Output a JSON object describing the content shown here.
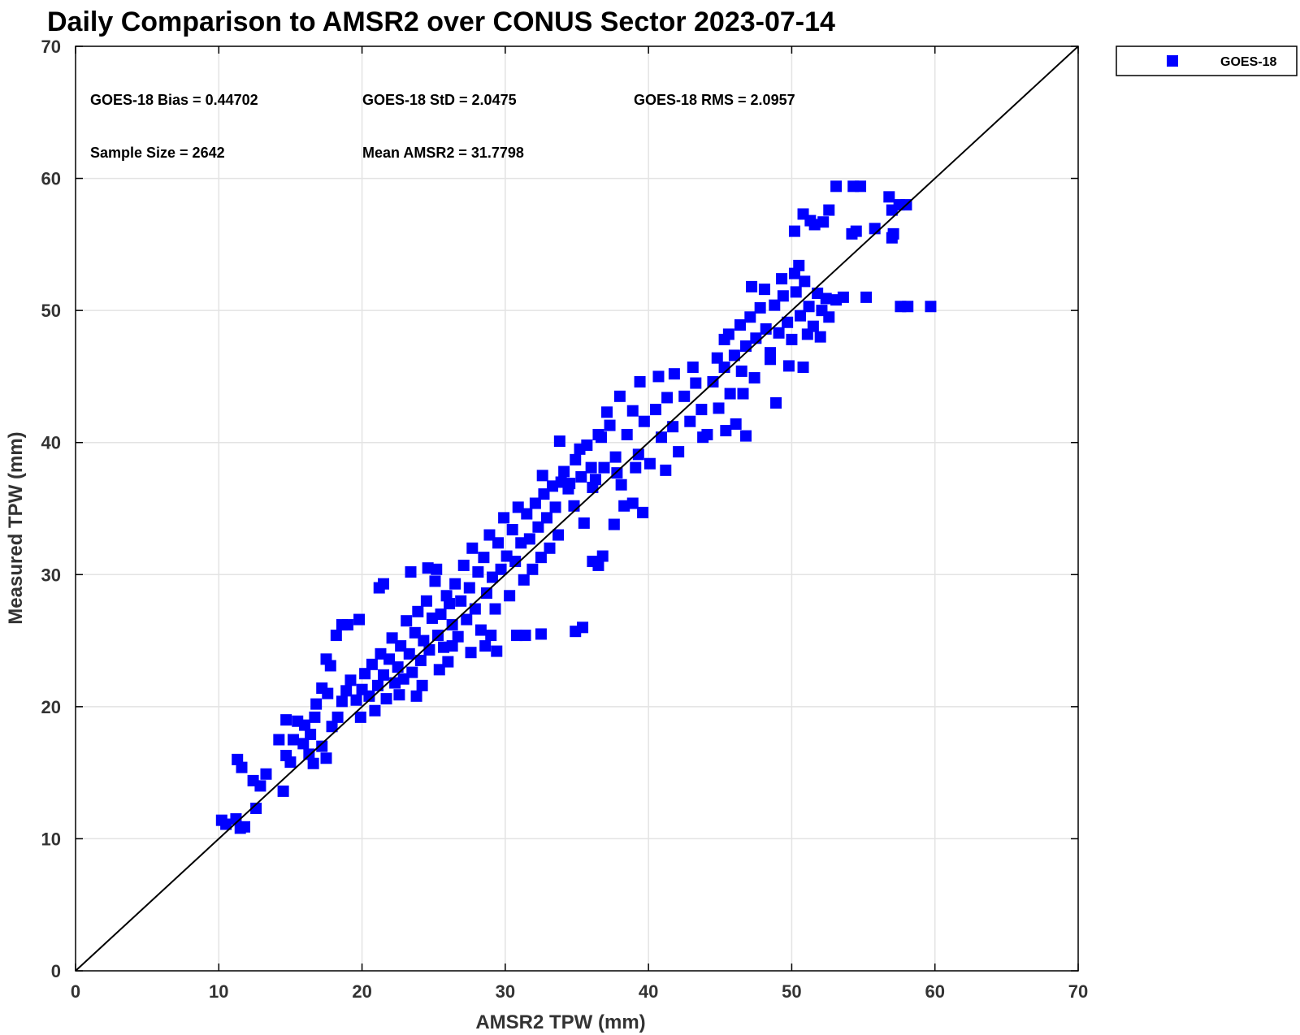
{
  "chart_data": {
    "type": "scatter",
    "title": "Daily Comparison to AMSR2 over CONUS Sector 2023-07-14",
    "xlabel": "AMSR2 TPW (mm)",
    "ylabel": "Measured TPW (mm)",
    "xlim": [
      0,
      70
    ],
    "ylim": [
      0,
      70
    ],
    "xticks": [
      0,
      10,
      20,
      30,
      40,
      50,
      60,
      70
    ],
    "yticks": [
      0,
      10,
      20,
      30,
      40,
      50,
      60,
      70
    ],
    "grid": true,
    "legend": {
      "position": "outside-top-right",
      "entries": [
        "GOES-18"
      ]
    },
    "reference_line": {
      "type": "1:1",
      "from": [
        0,
        0
      ],
      "to": [
        70,
        70
      ],
      "color": "#000000"
    },
    "annotations": [
      "GOES-18 Bias = 0.44702",
      "GOES-18 StD = 2.0475",
      "GOES-18 RMS = 2.0957",
      "Sample Size = 2642",
      "Mean AMSR2 = 31.7798"
    ],
    "series": [
      {
        "name": "GOES-18",
        "marker": "square",
        "color": "#0000ff",
        "points": [
          [
            10.2,
            11.4
          ],
          [
            10.5,
            11.1
          ],
          [
            11.2,
            11.5
          ],
          [
            11.5,
            10.8
          ],
          [
            11.8,
            10.9
          ],
          [
            11.3,
            16.0
          ],
          [
            11.6,
            15.4
          ],
          [
            12.4,
            14.4
          ],
          [
            12.6,
            12.3
          ],
          [
            12.9,
            14.0
          ],
          [
            13.3,
            14.9
          ],
          [
            14.5,
            13.6
          ],
          [
            14.7,
            16.3
          ],
          [
            15.0,
            15.8
          ],
          [
            15.2,
            17.5
          ],
          [
            14.2,
            17.5
          ],
          [
            14.7,
            19.0
          ],
          [
            15.5,
            18.9
          ],
          [
            15.9,
            17.2
          ],
          [
            16.0,
            18.6
          ],
          [
            16.4,
            17.9
          ],
          [
            16.3,
            16.4
          ],
          [
            16.6,
            15.7
          ],
          [
            17.2,
            17.0
          ],
          [
            17.5,
            16.1
          ],
          [
            16.7,
            19.2
          ],
          [
            16.8,
            20.2
          ],
          [
            17.2,
            21.4
          ],
          [
            17.6,
            21.0
          ],
          [
            17.8,
            23.1
          ],
          [
            17.5,
            23.6
          ],
          [
            18.2,
            25.4
          ],
          [
            18.6,
            26.2
          ],
          [
            19.0,
            26.2
          ],
          [
            19.8,
            26.6
          ],
          [
            17.9,
            18.5
          ],
          [
            18.3,
            19.2
          ],
          [
            18.6,
            20.4
          ],
          [
            18.9,
            21.2
          ],
          [
            19.2,
            22.0
          ],
          [
            19.6,
            20.5
          ],
          [
            19.9,
            19.2
          ],
          [
            20.0,
            21.3
          ],
          [
            20.2,
            22.5
          ],
          [
            20.5,
            20.8
          ],
          [
            20.7,
            23.2
          ],
          [
            20.9,
            19.7
          ],
          [
            21.1,
            21.6
          ],
          [
            21.3,
            24.0
          ],
          [
            21.5,
            22.4
          ],
          [
            21.7,
            20.6
          ],
          [
            21.9,
            23.6
          ],
          [
            22.1,
            25.2
          ],
          [
            22.3,
            21.8
          ],
          [
            22.5,
            23.0
          ],
          [
            22.7,
            24.6
          ],
          [
            22.9,
            22.1
          ],
          [
            23.1,
            26.5
          ],
          [
            23.3,
            24.0
          ],
          [
            23.5,
            22.6
          ],
          [
            23.7,
            25.6
          ],
          [
            23.9,
            27.2
          ],
          [
            24.1,
            23.5
          ],
          [
            24.3,
            25.0
          ],
          [
            24.5,
            28.0
          ],
          [
            24.7,
            24.3
          ],
          [
            24.9,
            26.7
          ],
          [
            25.1,
            29.5
          ],
          [
            25.3,
            25.4
          ],
          [
            25.5,
            27.0
          ],
          [
            25.7,
            24.5
          ],
          [
            25.9,
            28.4
          ],
          [
            21.2,
            29.0
          ],
          [
            21.5,
            29.3
          ],
          [
            23.4,
            30.2
          ],
          [
            24.6,
            30.5
          ],
          [
            25.2,
            30.4
          ],
          [
            22.6,
            20.9
          ],
          [
            23.8,
            20.8
          ],
          [
            24.2,
            21.6
          ],
          [
            25.4,
            22.8
          ],
          [
            26.0,
            23.4
          ],
          [
            26.3,
            24.6
          ],
          [
            26.1,
            27.8
          ],
          [
            26.3,
            26.2
          ],
          [
            26.5,
            29.3
          ],
          [
            26.7,
            25.3
          ],
          [
            26.9,
            28.0
          ],
          [
            27.1,
            30.7
          ],
          [
            27.3,
            26.6
          ],
          [
            27.5,
            29.0
          ],
          [
            27.7,
            32.0
          ],
          [
            27.9,
            27.4
          ],
          [
            28.1,
            30.2
          ],
          [
            28.3,
            25.8
          ],
          [
            28.5,
            31.3
          ],
          [
            28.7,
            28.6
          ],
          [
            28.9,
            33.0
          ],
          [
            29.1,
            29.8
          ],
          [
            29.3,
            27.4
          ],
          [
            29.5,
            32.4
          ],
          [
            29.7,
            30.4
          ],
          [
            29.9,
            34.3
          ],
          [
            30.1,
            31.4
          ],
          [
            30.3,
            28.4
          ],
          [
            30.5,
            33.4
          ],
          [
            30.7,
            31.0
          ],
          [
            30.9,
            35.1
          ],
          [
            31.1,
            32.4
          ],
          [
            31.3,
            29.6
          ],
          [
            31.5,
            34.6
          ],
          [
            31.7,
            32.7
          ],
          [
            31.9,
            30.4
          ],
          [
            32.1,
            35.4
          ],
          [
            32.3,
            33.6
          ],
          [
            32.5,
            31.3
          ],
          [
            32.7,
            36.1
          ],
          [
            32.9,
            34.3
          ],
          [
            33.1,
            32.0
          ],
          [
            33.3,
            36.7
          ],
          [
            33.5,
            35.1
          ],
          [
            33.7,
            33.0
          ],
          [
            33.9,
            37.0
          ],
          [
            27.6,
            24.1
          ],
          [
            28.6,
            24.6
          ],
          [
            29.0,
            25.4
          ],
          [
            30.8,
            25.4
          ],
          [
            31.4,
            25.4
          ],
          [
            32.5,
            25.5
          ],
          [
            34.9,
            25.7
          ],
          [
            35.4,
            26.0
          ],
          [
            29.4,
            24.2
          ],
          [
            32.6,
            37.5
          ],
          [
            33.8,
            40.1
          ],
          [
            34.4,
            36.5
          ],
          [
            35.2,
            39.5
          ],
          [
            34.8,
            35.2
          ],
          [
            35.5,
            33.9
          ],
          [
            36.0,
            38.1
          ],
          [
            36.3,
            37.2
          ],
          [
            36.8,
            31.4
          ],
          [
            36.1,
            31.0
          ],
          [
            36.5,
            30.7
          ],
          [
            37.6,
            33.8
          ],
          [
            36.7,
            40.4
          ],
          [
            34.1,
            37.8
          ],
          [
            34.5,
            36.9
          ],
          [
            34.9,
            38.7
          ],
          [
            35.3,
            37.4
          ],
          [
            35.7,
            39.8
          ],
          [
            36.1,
            36.6
          ],
          [
            36.5,
            40.6
          ],
          [
            36.9,
            38.1
          ],
          [
            37.3,
            41.3
          ],
          [
            37.7,
            38.9
          ],
          [
            38.1,
            36.8
          ],
          [
            38.5,
            40.6
          ],
          [
            38.9,
            42.4
          ],
          [
            39.3,
            39.1
          ],
          [
            39.7,
            41.6
          ],
          [
            40.1,
            38.4
          ],
          [
            40.5,
            42.5
          ],
          [
            40.9,
            40.4
          ],
          [
            41.3,
            43.4
          ],
          [
            41.7,
            41.2
          ],
          [
            42.1,
            39.3
          ],
          [
            42.5,
            43.5
          ],
          [
            42.9,
            41.6
          ],
          [
            43.3,
            44.5
          ],
          [
            43.7,
            42.5
          ],
          [
            44.1,
            40.6
          ],
          [
            44.5,
            44.6
          ],
          [
            44.9,
            42.6
          ],
          [
            45.3,
            45.7
          ],
          [
            45.7,
            43.7
          ],
          [
            46.1,
            41.4
          ],
          [
            46.5,
            45.4
          ],
          [
            37.1,
            42.3
          ],
          [
            38.0,
            43.5
          ],
          [
            39.4,
            44.6
          ],
          [
            40.7,
            45.0
          ],
          [
            41.8,
            45.2
          ],
          [
            43.1,
            45.7
          ],
          [
            37.8,
            37.7
          ],
          [
            39.1,
            38.1
          ],
          [
            41.2,
            37.9
          ],
          [
            43.8,
            40.4
          ],
          [
            45.4,
            40.9
          ],
          [
            46.8,
            40.5
          ],
          [
            38.3,
            35.2
          ],
          [
            38.9,
            35.4
          ],
          [
            39.6,
            34.7
          ],
          [
            44.8,
            46.4
          ],
          [
            45.3,
            47.8
          ],
          [
            45.6,
            48.2
          ],
          [
            46.0,
            46.6
          ],
          [
            46.4,
            48.9
          ],
          [
            46.8,
            47.3
          ],
          [
            47.1,
            49.5
          ],
          [
            47.5,
            47.9
          ],
          [
            47.8,
            50.2
          ],
          [
            48.2,
            48.6
          ],
          [
            48.5,
            46.8
          ],
          [
            48.8,
            50.4
          ],
          [
            49.1,
            48.3
          ],
          [
            49.4,
            51.1
          ],
          [
            49.7,
            49.1
          ],
          [
            50.0,
            47.8
          ],
          [
            50.3,
            51.4
          ],
          [
            50.6,
            49.6
          ],
          [
            50.9,
            52.2
          ],
          [
            51.2,
            50.3
          ],
          [
            51.5,
            48.8
          ],
          [
            51.8,
            51.3
          ],
          [
            52.1,
            50.0
          ],
          [
            49.3,
            52.4
          ],
          [
            47.2,
            51.8
          ],
          [
            48.1,
            51.6
          ],
          [
            50.5,
            53.4
          ],
          [
            50.2,
            52.8
          ],
          [
            52.4,
            50.9
          ],
          [
            53.1,
            50.8
          ],
          [
            53.6,
            51.0
          ],
          [
            55.2,
            51.0
          ],
          [
            51.1,
            48.2
          ],
          [
            52.0,
            48.0
          ],
          [
            52.6,
            49.5
          ],
          [
            48.5,
            46.3
          ],
          [
            49.8,
            45.8
          ],
          [
            50.8,
            45.7
          ],
          [
            48.9,
            43.0
          ],
          [
            47.4,
            44.9
          ],
          [
            46.6,
            43.7
          ],
          [
            50.2,
            56.0
          ],
          [
            50.8,
            57.3
          ],
          [
            51.3,
            56.8
          ],
          [
            51.6,
            56.5
          ],
          [
            52.2,
            56.7
          ],
          [
            52.6,
            57.6
          ],
          [
            53.1,
            59.4
          ],
          [
            54.3,
            59.4
          ],
          [
            54.8,
            59.4
          ],
          [
            54.5,
            56.0
          ],
          [
            54.2,
            55.8
          ],
          [
            55.8,
            56.2
          ],
          [
            56.8,
            58.6
          ],
          [
            57.0,
            57.6
          ],
          [
            57.1,
            55.8
          ],
          [
            57.0,
            55.5
          ],
          [
            57.5,
            58.0
          ],
          [
            58.0,
            58.0
          ],
          [
            57.6,
            50.3
          ],
          [
            58.1,
            50.3
          ],
          [
            59.7,
            50.3
          ]
        ]
      }
    ]
  }
}
